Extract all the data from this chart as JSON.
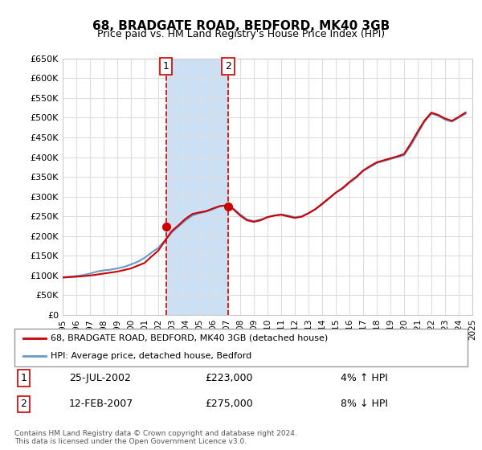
{
  "title": "68, BRADGATE ROAD, BEDFORD, MK40 3GB",
  "subtitle": "Price paid vs. HM Land Registry's House Price Index (HPI)",
  "ylabel_ticks": [
    "£0",
    "£50K",
    "£100K",
    "£150K",
    "£200K",
    "£250K",
    "£300K",
    "£350K",
    "£400K",
    "£450K",
    "£500K",
    "£550K",
    "£600K",
    "£650K"
  ],
  "ylim": [
    0,
    650000
  ],
  "yticks": [
    0,
    50000,
    100000,
    150000,
    200000,
    250000,
    300000,
    350000,
    400000,
    450000,
    500000,
    550000,
    600000,
    650000
  ],
  "xmin": 1995,
  "xmax": 2025,
  "sale1_x": 2002.57,
  "sale1_y": 223000,
  "sale2_x": 2007.12,
  "sale2_y": 275000,
  "sale1_label": "1",
  "sale2_label": "2",
  "shaded_x1_start": 2002.57,
  "shaded_x1_end": 2007.12,
  "line_color_red": "#cc0000",
  "line_color_blue": "#6699cc",
  "shade_color": "#cce0f5",
  "vline_color": "#cc0000",
  "grid_color": "#dddddd",
  "background_color": "#ffffff",
  "legend_line1": "68, BRADGATE ROAD, BEDFORD, MK40 3GB (detached house)",
  "legend_line2": "HPI: Average price, detached house, Bedford",
  "table_row1": [
    "1",
    "25-JUL-2002",
    "£223,000",
    "4% ↑ HPI"
  ],
  "table_row2": [
    "2",
    "12-FEB-2007",
    "£275,000",
    "8% ↓ HPI"
  ],
  "footnote": "Contains HM Land Registry data © Crown copyright and database right 2024.\nThis data is licensed under the Open Government Licence v3.0.",
  "hpi_years": [
    1995,
    1995.5,
    1996,
    1996.5,
    1997,
    1997.5,
    1998,
    1998.5,
    1999,
    1999.5,
    2000,
    2000.5,
    2001,
    2001.5,
    2002,
    2002.3,
    2002.57,
    2003,
    2003.5,
    2004,
    2004.5,
    2005,
    2005.5,
    2006,
    2006.5,
    2007,
    2007.12,
    2007.5,
    2008,
    2008.5,
    2009,
    2009.5,
    2010,
    2010.5,
    2011,
    2011.5,
    2012,
    2012.5,
    2013,
    2013.5,
    2014,
    2014.5,
    2015,
    2015.5,
    2016,
    2016.5,
    2017,
    2017.5,
    2018,
    2018.5,
    2019,
    2019.5,
    2020,
    2020.5,
    2021,
    2021.5,
    2022,
    2022.5,
    2023,
    2023.5,
    2024,
    2024.5
  ],
  "hpi_values": [
    95000,
    97000,
    99000,
    101000,
    105000,
    110000,
    113000,
    115000,
    118000,
    122000,
    128000,
    135000,
    145000,
    158000,
    170000,
    182000,
    192000,
    210000,
    225000,
    240000,
    252000,
    258000,
    262000,
    268000,
    275000,
    278000,
    280000,
    270000,
    255000,
    242000,
    238000,
    242000,
    248000,
    252000,
    255000,
    252000,
    248000,
    250000,
    258000,
    268000,
    280000,
    295000,
    310000,
    320000,
    335000,
    348000,
    365000,
    375000,
    385000,
    390000,
    395000,
    400000,
    405000,
    430000,
    460000,
    490000,
    510000,
    505000,
    495000,
    490000,
    500000,
    510000
  ],
  "price_years": [
    1995,
    1996,
    1997,
    1998,
    1999,
    2000,
    2001,
    2001.5,
    2002,
    2002.3,
    2002.57,
    2003,
    2003.5,
    2004,
    2004.5,
    2005,
    2005.5,
    2006,
    2006.5,
    2007,
    2007.12,
    2007.5,
    2008,
    2008.5,
    2009,
    2009.5,
    2010,
    2010.5,
    2011,
    2011.5,
    2012,
    2012.5,
    2013,
    2013.5,
    2014,
    2014.5,
    2015,
    2015.5,
    2016,
    2016.5,
    2017,
    2017.5,
    2018,
    2018.5,
    2019,
    2019.5,
    2020,
    2020.5,
    2021,
    2021.5,
    2022,
    2022.5,
    2023,
    2023.5,
    2024,
    2024.5
  ],
  "price_values": [
    95000,
    97000,
    100000,
    105000,
    110000,
    118000,
    132000,
    148000,
    163000,
    178000,
    192000,
    213000,
    228000,
    244000,
    256000,
    260000,
    263000,
    270000,
    276000,
    278000,
    280000,
    268000,
    252000,
    240000,
    236000,
    240000,
    248000,
    252000,
    254000,
    250000,
    246000,
    249000,
    258000,
    268000,
    282000,
    296000,
    310000,
    322000,
    337000,
    350000,
    366000,
    377000,
    387000,
    392000,
    397000,
    402000,
    408000,
    435000,
    465000,
    493000,
    513000,
    507000,
    498000,
    492000,
    502000,
    513000
  ]
}
